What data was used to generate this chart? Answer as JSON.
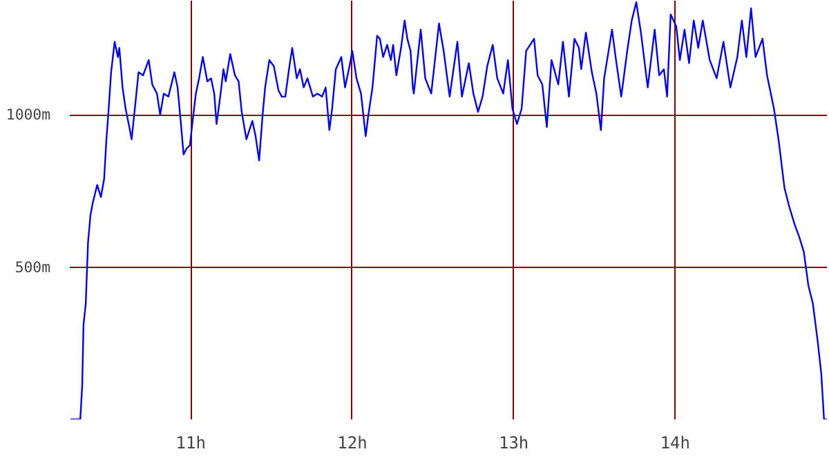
{
  "chart_data": {
    "type": "line",
    "color": "#0000ff",
    "grid": true,
    "xlim": [
      10.25,
      14.94
    ],
    "ylim": [
      0,
      1375
    ],
    "xticks": [
      {
        "value": 11,
        "label": "11h"
      },
      {
        "value": 12,
        "label": "12h"
      },
      {
        "value": 13,
        "label": "13h"
      },
      {
        "value": 14,
        "label": "14h"
      }
    ],
    "yticks": [
      {
        "value": 500,
        "label": "500m"
      },
      {
        "value": 1000,
        "label": "1000m"
      }
    ],
    "x": [
      10.255,
      10.315,
      10.327,
      10.335,
      10.349,
      10.363,
      10.378,
      10.392,
      10.42,
      10.443,
      10.463,
      10.477,
      10.491,
      10.506,
      10.528,
      10.548,
      10.557,
      10.577,
      10.596,
      10.619,
      10.633,
      10.653,
      10.676,
      10.704,
      10.739,
      10.761,
      10.79,
      10.81,
      10.832,
      10.861,
      10.898,
      10.918,
      10.937,
      10.955,
      10.974,
      10.994,
      11.011,
      11.031,
      11.051,
      11.074,
      11.102,
      11.125,
      11.145,
      11.159,
      11.182,
      11.202,
      11.216,
      11.244,
      11.273,
      11.296,
      11.315,
      11.344,
      11.381,
      11.401,
      11.423,
      11.443,
      11.46,
      11.486,
      11.514,
      11.543,
      11.563,
      11.585,
      11.608,
      11.628,
      11.656,
      11.676,
      11.699,
      11.722,
      11.756,
      11.784,
      11.813,
      11.835,
      11.858,
      11.875,
      11.898,
      11.932,
      11.955,
      11.983,
      12.0,
      12.026,
      12.054,
      12.083,
      12.097,
      12.125,
      12.154,
      12.171,
      12.191,
      12.216,
      12.239,
      12.253,
      12.273,
      12.302,
      12.324,
      12.341,
      12.361,
      12.375,
      12.381,
      12.424,
      12.452,
      12.489,
      12.537,
      12.566,
      12.603,
      12.651,
      12.679,
      12.722,
      12.75,
      12.779,
      12.807,
      12.836,
      12.87,
      12.898,
      12.935,
      12.964,
      12.992,
      13.02,
      13.049,
      13.077,
      13.126,
      13.148,
      13.177,
      13.205,
      13.234,
      13.276,
      13.305,
      13.342,
      13.376,
      13.404,
      13.418,
      13.447,
      13.484,
      13.512,
      13.54,
      13.56,
      13.609,
      13.631,
      13.666,
      13.703,
      13.731,
      13.759,
      13.788,
      13.83,
      13.873,
      13.901,
      13.93,
      13.95,
      13.972,
      14.007,
      14.029,
      14.058,
      14.086,
      14.115,
      14.143,
      14.171,
      14.214,
      14.257,
      14.299,
      14.342,
      14.385,
      14.413,
      14.441,
      14.47,
      14.498,
      14.541,
      14.569,
      14.612,
      14.64,
      14.654,
      14.677,
      14.706,
      14.74,
      14.768,
      14.797,
      14.825,
      14.853,
      14.882,
      14.905,
      14.922,
      14.939
    ],
    "values": [
      0,
      0,
      110,
      310,
      380,
      580,
      670,
      710,
      770,
      730,
      790,
      920,
      1020,
      1140,
      1240,
      1190,
      1220,
      1090,
      1020,
      960,
      920,
      1020,
      1140,
      1130,
      1180,
      1100,
      1070,
      1000,
      1070,
      1060,
      1140,
      1090,
      980,
      870,
      890,
      900,
      980,
      1070,
      1120,
      1190,
      1110,
      1120,
      1070,
      970,
      1060,
      1150,
      1110,
      1200,
      1130,
      1110,
      1010,
      920,
      980,
      930,
      850,
      990,
      1090,
      1180,
      1160,
      1080,
      1060,
      1060,
      1150,
      1220,
      1120,
      1150,
      1090,
      1120,
      1060,
      1070,
      1060,
      1090,
      950,
      1020,
      1150,
      1190,
      1090,
      1160,
      1210,
      1120,
      1070,
      930,
      990,
      1090,
      1260,
      1250,
      1190,
      1230,
      1180,
      1230,
      1130,
      1220,
      1310,
      1250,
      1210,
      1090,
      1070,
      1280,
      1120,
      1070,
      1300,
      1210,
      1060,
      1240,
      1060,
      1170,
      1070,
      1010,
      1060,
      1160,
      1230,
      1120,
      1070,
      1180,
      1020,
      970,
      1020,
      1210,
      1250,
      1130,
      1100,
      960,
      1180,
      1100,
      1240,
      1060,
      1250,
      1220,
      1150,
      1270,
      1140,
      1070,
      950,
      1120,
      1280,
      1190,
      1060,
      1210,
      1310,
      1370,
      1270,
      1090,
      1280,
      1130,
      1150,
      1060,
      1330,
      1290,
      1180,
      1280,
      1170,
      1310,
      1220,
      1310,
      1180,
      1120,
      1240,
      1090,
      1190,
      1310,
      1190,
      1350,
      1190,
      1250,
      1130,
      1020,
      920,
      860,
      760,
      700,
      640,
      600,
      550,
      440,
      380,
      260,
      150,
      0,
      0
    ]
  }
}
